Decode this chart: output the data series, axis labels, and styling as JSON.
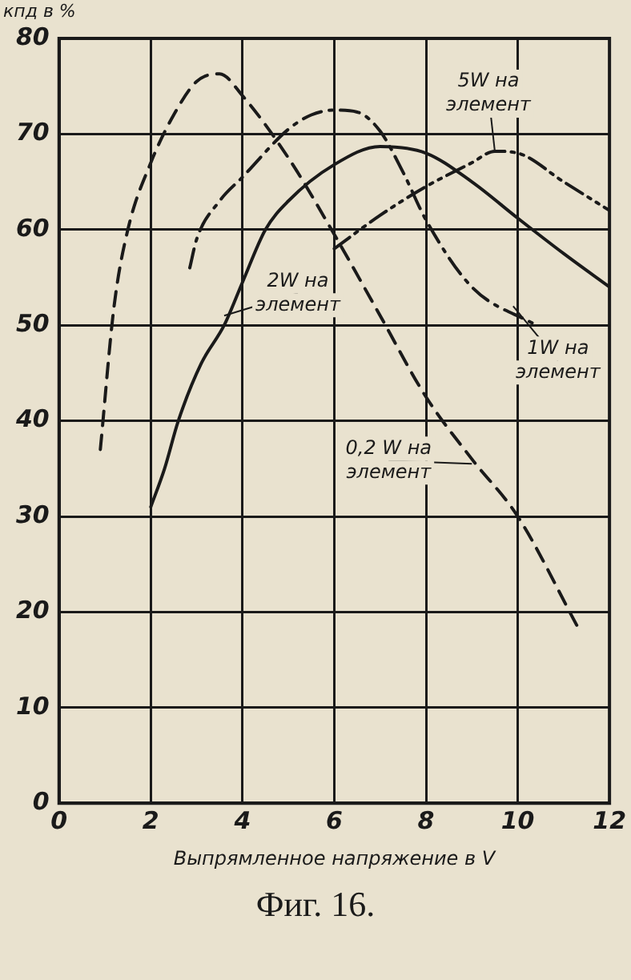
{
  "chart_data": {
    "type": "line",
    "ylabel": "кпд в %",
    "xlabel": "Выпрямленное напряжение в V",
    "xlim": [
      0,
      12
    ],
    "xticks": [
      0,
      2,
      4,
      6,
      8,
      10,
      12
    ],
    "ylim": [
      0,
      80
    ],
    "yticks": [
      0,
      10,
      20,
      30,
      40,
      50,
      60,
      70,
      80
    ],
    "grid": true,
    "legend": false,
    "marker": "none",
    "series": [
      {
        "color": "#1a1a1a",
        "line_style": "dashed",
        "x": [
          0.9,
          1.2,
          1.5,
          2,
          2.5,
          3,
          3.5,
          4,
          5,
          6,
          7,
          8,
          9,
          10,
          11.3
        ],
        "values": [
          37,
          52,
          60,
          67,
          72,
          75.5,
          76.3,
          74,
          67.5,
          59.5,
          51,
          42.5,
          36,
          30,
          18.5
        ]
      },
      {
        "color": "#1a1a1a",
        "line_style": "dashdot",
        "x": [
          2.85,
          3,
          3.5,
          4,
          5,
          5.5,
          6,
          6.5,
          7,
          7.5,
          8,
          9,
          10.4
        ],
        "values": [
          56,
          59,
          63,
          65.5,
          70.5,
          72,
          72.5,
          72.3,
          70.3,
          66,
          61,
          54,
          50
        ]
      },
      {
        "color": "#1a1a1a",
        "line_style": "solid",
        "x": [
          2,
          2.3,
          2.6,
          3.1,
          3.6,
          4,
          4.5,
          5,
          6,
          7,
          8,
          9,
          10,
          11,
          12
        ],
        "values": [
          31,
          35,
          40,
          46,
          50,
          54.5,
          60,
          63,
          66.8,
          68.7,
          68,
          65,
          61.2,
          57.5,
          54
        ]
      },
      {
        "color": "#1a1a1a",
        "line_style": "dashdotdot",
        "x": [
          6,
          7,
          8,
          9,
          9.5,
          10,
          11,
          12
        ],
        "values": [
          58,
          61.5,
          64.5,
          67,
          68.2,
          68,
          65,
          62
        ]
      }
    ],
    "annotations": [
      {
        "text": "5W на\nэлемент",
        "x": 9.5,
        "y": 68.2
      },
      {
        "text": "2W на\nэлемент",
        "x": 3.6,
        "y": 51
      },
      {
        "text": "1W на\nэлемент",
        "x": 9.9,
        "y": 52
      },
      {
        "text": "0,2 W на\nэлемент",
        "x": 9.0,
        "y": 35.5
      },
      "Фиг. 16."
    ]
  }
}
